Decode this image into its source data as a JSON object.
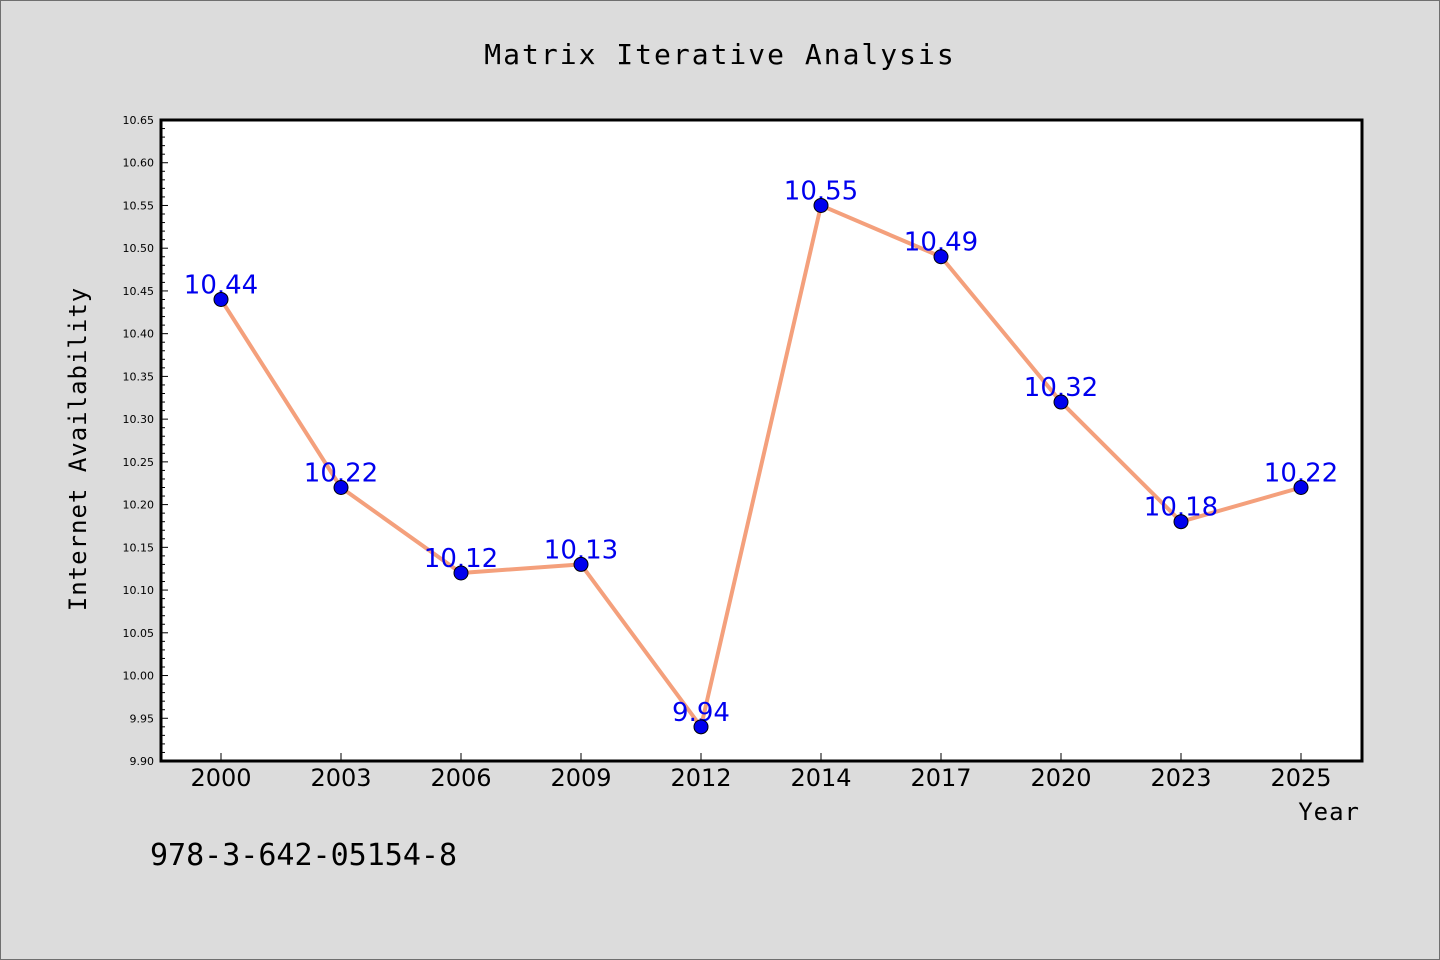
{
  "chart_data": {
    "type": "line",
    "title": "Matrix Iterative Analysis",
    "xlabel": "Year",
    "ylabel": "Internet Availability",
    "categories": [
      "2000",
      "2003",
      "2006",
      "2009",
      "2012",
      "2014",
      "2017",
      "2020",
      "2023",
      "2025"
    ],
    "series": [
      {
        "values": [
          10.44,
          10.22,
          10.12,
          10.13,
          9.94,
          10.55,
          10.49,
          10.32,
          10.18,
          10.22
        ],
        "data_labels": [
          "10.44",
          "10.22",
          "10.12",
          "10.13",
          "9.94",
          "10.55",
          "10.49",
          "10.32",
          "10.18",
          "10.22"
        ],
        "line_color": "#f4a07c",
        "marker_color": "#0000ee",
        "label_color": "#0000ee"
      }
    ],
    "ylim": [
      9.9,
      10.65
    ],
    "yticks": [
      "9.90",
      "9.95",
      "10.00",
      "10.05",
      "10.10",
      "10.15",
      "10.20",
      "10.25",
      "10.30",
      "10.35",
      "10.40",
      "10.45",
      "10.50",
      "10.55",
      "10.60",
      "10.65"
    ],
    "grid": false,
    "legend": "none",
    "plot_background": "#ffffff",
    "figure_background": "#dcdcdc"
  },
  "footer": {
    "isbn": "978-3-642-05154-8"
  }
}
